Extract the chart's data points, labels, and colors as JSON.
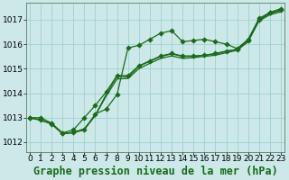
{
  "title": "Graphe pression niveau de la mer (hPa)",
  "bg_color": "#cce8e8",
  "grid_color": "#99cccc",
  "line_color": "#1a6b1a",
  "x_ticks": [
    0,
    1,
    2,
    3,
    4,
    5,
    6,
    7,
    8,
    9,
    10,
    11,
    12,
    13,
    14,
    15,
    16,
    17,
    18,
    19,
    20,
    21,
    22,
    23
  ],
  "y_ticks": [
    1012,
    1013,
    1014,
    1015,
    1016,
    1017
  ],
  "xlim": [
    -0.3,
    23.3
  ],
  "ylim": [
    1011.6,
    1017.7
  ],
  "lines": [
    {
      "y": [
        1013.0,
        1012.9,
        1012.75,
        1012.35,
        1012.4,
        1012.5,
        1013.15,
        1013.35,
        1013.95,
        1015.85,
        1015.95,
        1016.2,
        1016.45,
        1016.55,
        1016.1,
        1016.15,
        1016.2,
        1016.1,
        1016.0,
        1015.82,
        1016.2,
        1017.05,
        1017.3,
        1017.45
      ],
      "markers": true
    },
    {
      "y": [
        1013.0,
        1012.9,
        1012.75,
        1012.35,
        1012.4,
        1012.55,
        1013.1,
        1013.95,
        1014.7,
        1014.65,
        1015.1,
        1015.3,
        1015.5,
        1015.6,
        1015.5,
        1015.5,
        1015.55,
        1015.6,
        1015.7,
        1015.8,
        1016.15,
        1017.0,
        1017.25,
        1017.38
      ],
      "markers": false
    },
    {
      "y": [
        1013.0,
        1012.9,
        1012.75,
        1012.35,
        1012.38,
        1012.52,
        1013.08,
        1013.88,
        1014.58,
        1014.6,
        1015.0,
        1015.22,
        1015.42,
        1015.52,
        1015.42,
        1015.45,
        1015.5,
        1015.55,
        1015.65,
        1015.75,
        1016.1,
        1016.95,
        1017.2,
        1017.32
      ],
      "markers": false
    },
    {
      "y": [
        1013.0,
        1013.0,
        1012.78,
        1012.38,
        1012.5,
        1013.0,
        1013.5,
        1014.05,
        1014.72,
        1014.72,
        1015.12,
        1015.32,
        1015.52,
        1015.62,
        1015.52,
        1015.52,
        1015.55,
        1015.62,
        1015.72,
        1015.78,
        1016.15,
        1017.0,
        1017.28,
        1017.4
      ],
      "markers": true
    }
  ],
  "tick_fontsize": 6.5,
  "label_fontsize": 8.5,
  "linewidth": 0.9,
  "markersize": 2.8
}
